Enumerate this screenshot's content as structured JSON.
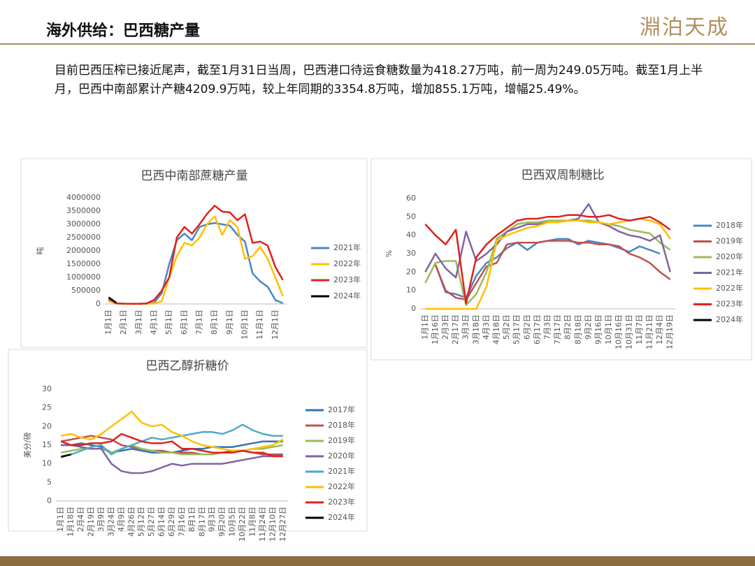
{
  "header": {
    "title": "海外供给：巴西糖产量",
    "logo": "淵泊天成"
  },
  "body": "目前巴西压榨已接近尾声，截至1月31日当周，巴西港口待运食糖数量为418.27万吨，前一周为249.05万吨。截至1月上半月，巴西中南部累计产糖4209.9万吨，较上年同期的3354.8万吨，增加855.1万吨，增幅25.49%。",
  "chart_data": [
    {
      "type": "line",
      "title": "巴西中南部蔗糖产量",
      "ylabel": "吨",
      "grid": false,
      "legend": "right",
      "categories": [
        "1月1日",
        null,
        "2月1日",
        null,
        "3月1日",
        null,
        "4月1日",
        null,
        "5月1日",
        null,
        "6月1日",
        null,
        "7月1日",
        null,
        "8月1日",
        null,
        "9月1日",
        null,
        "10月1日",
        null,
        "11月1日",
        null,
        "12月1日",
        null
      ],
      "ylim": [
        0,
        4000000
      ],
      "yticks": [
        0,
        500000,
        1000000,
        1500000,
        2000000,
        2500000,
        3000000,
        3500000,
        4000000
      ],
      "series": [
        {
          "name": "2021年",
          "color": "#4a86c5",
          "values": [
            150000,
            30000,
            10000,
            5000,
            5000,
            10000,
            50000,
            400000,
            1500000,
            2400000,
            2650000,
            2400000,
            2900000,
            3000000,
            3050000,
            3000000,
            2950000,
            2600000,
            2350000,
            1150000,
            850000,
            650000,
            150000,
            30000
          ]
        },
        {
          "name": "2022年",
          "color": "#ffc000",
          "values": [
            100000,
            20000,
            5000,
            3000,
            3000,
            5000,
            20000,
            100000,
            1000000,
            1800000,
            2300000,
            2200000,
            2500000,
            3000000,
            3300000,
            2600000,
            3150000,
            2900000,
            1700000,
            1800000,
            2150000,
            1700000,
            1000000,
            300000
          ]
        },
        {
          "name": "2023年",
          "color": "#e0201b",
          "values": [
            200000,
            20000,
            10000,
            5000,
            5000,
            20000,
            150000,
            500000,
            1000000,
            2500000,
            2900000,
            2650000,
            3000000,
            3400000,
            3700000,
            3480000,
            3450000,
            3150000,
            3380000,
            2300000,
            2350000,
            2200000,
            1400000,
            900000
          ]
        },
        {
          "name": "2024年",
          "color": "#000000",
          "values": [
            250000,
            50000,
            null,
            null,
            null,
            null,
            null,
            null,
            null,
            null,
            null,
            null,
            null,
            null,
            null,
            null,
            null,
            null,
            null,
            null,
            null,
            null,
            null,
            null
          ]
        }
      ]
    },
    {
      "type": "line",
      "title": "巴西双周制糖比",
      "ylabel": "%",
      "grid": false,
      "legend": "right",
      "categories": [
        "1月1日",
        "1月16日",
        "2月3日",
        "2月17日",
        "3月3日",
        "3月18日",
        "4月3日",
        "4月18日",
        "5月2日",
        "5月17日",
        "6月2日",
        "6月17日",
        "7月3日",
        "7月17日",
        "8月2日",
        "8月18日",
        "9月2日",
        "9月16日",
        "10月1日",
        "10月16日",
        "10月31日",
        "11月7日",
        "11月21日",
        "12月4日",
        "12月19日"
      ],
      "ylim": [
        0,
        60
      ],
      "yticks": [
        0,
        10,
        20,
        30,
        40,
        50,
        60
      ],
      "series": [
        {
          "name": "2018年",
          "color": "#4a86c5",
          "values": [
            null,
            24,
            9,
            8,
            6,
            18,
            25,
            28,
            33,
            36,
            32,
            36,
            37,
            38,
            38,
            35,
            37,
            36,
            35,
            33,
            31,
            34,
            32,
            30,
            null
          ]
        },
        {
          "name": "2019年",
          "color": "#c0504d",
          "values": [
            null,
            24,
            10,
            6,
            5,
            14,
            23,
            25,
            35,
            36,
            36,
            36,
            37,
            37,
            37,
            36,
            36,
            35,
            35,
            34,
            30,
            28,
            25,
            20,
            16
          ]
        },
        {
          "name": "2020年",
          "color": "#9bbb59",
          "values": [
            14,
            25,
            26,
            26,
            2,
            8,
            20,
            38,
            42,
            46,
            47,
            47,
            48,
            48,
            48,
            48,
            48,
            47,
            46,
            45,
            43,
            42,
            41,
            36,
            32
          ]
        },
        {
          "name": "2021年",
          "color": "#8064a2",
          "values": [
            20,
            30,
            22,
            17,
            42,
            26,
            30,
            35,
            42,
            44,
            46,
            46,
            47,
            47,
            48,
            49,
            57,
            47,
            45,
            42,
            40,
            39,
            37,
            40,
            20
          ]
        },
        {
          "name": "2022年",
          "color": "#ffc000",
          "values": [
            0,
            0,
            0,
            0,
            0,
            0,
            12,
            37,
            40,
            42,
            44,
            45,
            47,
            47,
            48,
            48,
            47,
            47,
            46,
            47,
            48,
            49,
            48,
            46,
            38
          ]
        },
        {
          "name": "2023年",
          "color": "#e0201b",
          "values": [
            46,
            40,
            35,
            43,
            3,
            28,
            35,
            40,
            44,
            48,
            49,
            49,
            50,
            50,
            51,
            51,
            50,
            50,
            51,
            49,
            48,
            49,
            50,
            47,
            43
          ]
        },
        {
          "name": "2024年",
          "color": "#000000",
          "values": [
            null,
            null,
            null,
            null,
            null,
            null,
            null,
            null,
            null,
            null,
            null,
            null,
            null,
            null,
            null,
            null,
            null,
            null,
            null,
            null,
            null,
            null,
            null,
            null,
            null
          ]
        }
      ]
    },
    {
      "type": "line",
      "title": "巴西乙醇折糖价",
      "ylabel": "美分/磅",
      "grid": false,
      "legend": "right",
      "categories": [
        "1月1日",
        "1月18日",
        "2月4日",
        "2月19日",
        "3月9日",
        "3月24日",
        "4月9日",
        "4月26日",
        "5月12日",
        "5月27日",
        "6月14日",
        "6月29日",
        "7月16日",
        "8月1日",
        "8月17日",
        "9月3日",
        "9月20日",
        "10月5日",
        "10月22日",
        "11月8日",
        "11月24日",
        "12月10日",
        "12月27日"
      ],
      "ylim": [
        0,
        30
      ],
      "yticks": [
        0,
        5,
        10,
        15,
        20,
        25,
        30
      ],
      "series": [
        {
          "name": "2017年",
          "color": "#2e75b6",
          "values": [
            15,
            15,
            15.5,
            15,
            14.5,
            13,
            13.5,
            14,
            13.5,
            13,
            13,
            13,
            13.5,
            14,
            14,
            14.5,
            14.5,
            14.5,
            15,
            15.5,
            16,
            16,
            16
          ]
        },
        {
          "name": "2018年",
          "color": "#c0504d",
          "values": [
            16,
            16.5,
            17,
            17.5,
            17,
            16.5,
            15,
            14.5,
            14,
            13.5,
            13.5,
            13,
            13,
            13,
            12.5,
            12.5,
            13,
            13.5,
            13.5,
            13,
            12.5,
            12.5,
            12.5
          ]
        },
        {
          "name": "2019年",
          "color": "#9bbb59",
          "values": [
            13,
            13.5,
            14,
            14,
            14,
            13,
            14,
            15,
            14,
            13.5,
            13,
            13,
            12.5,
            12.5,
            12.5,
            12.5,
            13,
            13,
            13.5,
            14,
            14,
            14.5,
            15
          ]
        },
        {
          "name": "2020年",
          "color": "#8064a2",
          "values": [
            15,
            15,
            14.5,
            14,
            14,
            10,
            8,
            7.5,
            7.5,
            8,
            9,
            10,
            9.5,
            10,
            10,
            10,
            10,
            10.5,
            11,
            11.5,
            12,
            12,
            12.5
          ]
        },
        {
          "name": "2021年",
          "color": "#4bacc6",
          "values": [
            12,
            12.5,
            13.5,
            14.5,
            15,
            12.5,
            14,
            15,
            16,
            17,
            16.5,
            17,
            17.5,
            18,
            18.5,
            18.5,
            18,
            19,
            20.5,
            19,
            18,
            17.5,
            17.5
          ]
        },
        {
          "name": "2022年",
          "color": "#ffc000",
          "values": [
            17.5,
            18,
            17,
            16.5,
            18,
            20,
            22,
            24,
            21,
            20,
            20.5,
            18.5,
            17.5,
            16,
            15,
            14.5,
            14,
            13.5,
            13.5,
            14,
            14.5,
            15,
            16.5
          ]
        },
        {
          "name": "2023年",
          "color": "#e0201b",
          "values": [
            16,
            15,
            15,
            15.5,
            15.5,
            16,
            18,
            17,
            16,
            15.5,
            15.5,
            16,
            14,
            14,
            13.5,
            13,
            13,
            13,
            13.5,
            13,
            13,
            12,
            12
          ]
        },
        {
          "name": "2024年",
          "color": "#000000",
          "values": [
            11.8,
            12.5,
            null,
            null,
            null,
            null,
            null,
            null,
            null,
            null,
            null,
            null,
            null,
            null,
            null,
            null,
            null,
            null,
            null,
            null,
            null,
            null,
            null
          ]
        }
      ]
    }
  ]
}
